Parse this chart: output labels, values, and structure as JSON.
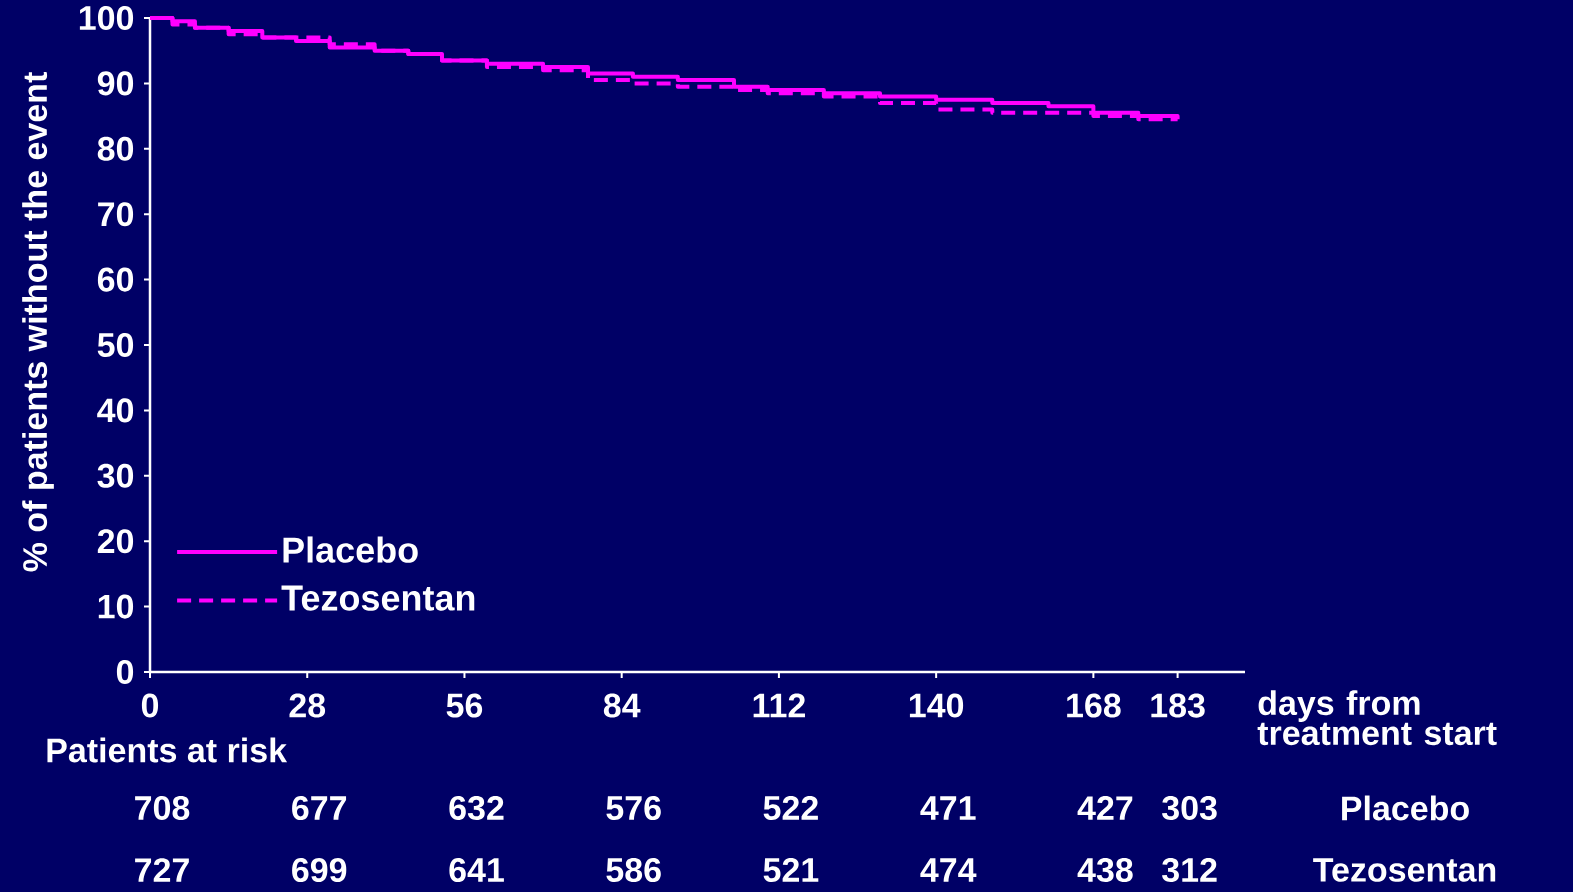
{
  "chart_data": {
    "type": "step",
    "ylabel": "% of patients without the event",
    "xlabel": "days from treatment start",
    "xlim": [
      0,
      195
    ],
    "xticks": [
      0,
      28,
      56,
      84,
      112,
      140,
      168,
      183
    ],
    "ylim": [
      0,
      100
    ],
    "yticks": [
      0,
      10,
      20,
      30,
      40,
      50,
      60,
      70,
      80,
      90,
      100
    ],
    "legend": "bottom left",
    "grid": false,
    "series": [
      {
        "name": "Placebo",
        "color": "#ff00ff",
        "line_style": "solid",
        "x": [
          0,
          4,
          8,
          14,
          20,
          26,
          32,
          40,
          46,
          52,
          60,
          70,
          78,
          86,
          94,
          104,
          110,
          120,
          130,
          140,
          150,
          160,
          168,
          176,
          183
        ],
        "values": [
          100,
          99.5,
          98.5,
          98,
          97,
          96.5,
          95.5,
          95,
          94.5,
          93.5,
          93,
          92.5,
          91.5,
          91,
          90.5,
          89.5,
          89,
          88.5,
          88,
          87.5,
          87,
          86.5,
          85.5,
          85,
          84.5
        ]
      },
      {
        "name": "Tezosentan",
        "color": "#ff00ff",
        "line_style": "dashed",
        "x": [
          0,
          4,
          8,
          14,
          20,
          26,
          32,
          40,
          46,
          52,
          60,
          70,
          78,
          86,
          94,
          104,
          110,
          120,
          130,
          140,
          150,
          160,
          168,
          176,
          183
        ],
        "values": [
          100,
          99,
          98.5,
          97.5,
          97,
          97,
          96,
          95,
          94.5,
          93.5,
          92.5,
          92,
          90.5,
          90,
          89.5,
          89,
          88.5,
          88,
          87,
          86,
          85.5,
          85.5,
          85,
          84.5,
          84.5
        ]
      }
    ],
    "annotations": [
      "Patients at risk",
      "708",
      "677",
      "632",
      "576",
      "522",
      "471",
      "427",
      "303",
      "727",
      "699",
      "641",
      "586",
      "521",
      "474",
      "438",
      "312"
    ]
  }
}
